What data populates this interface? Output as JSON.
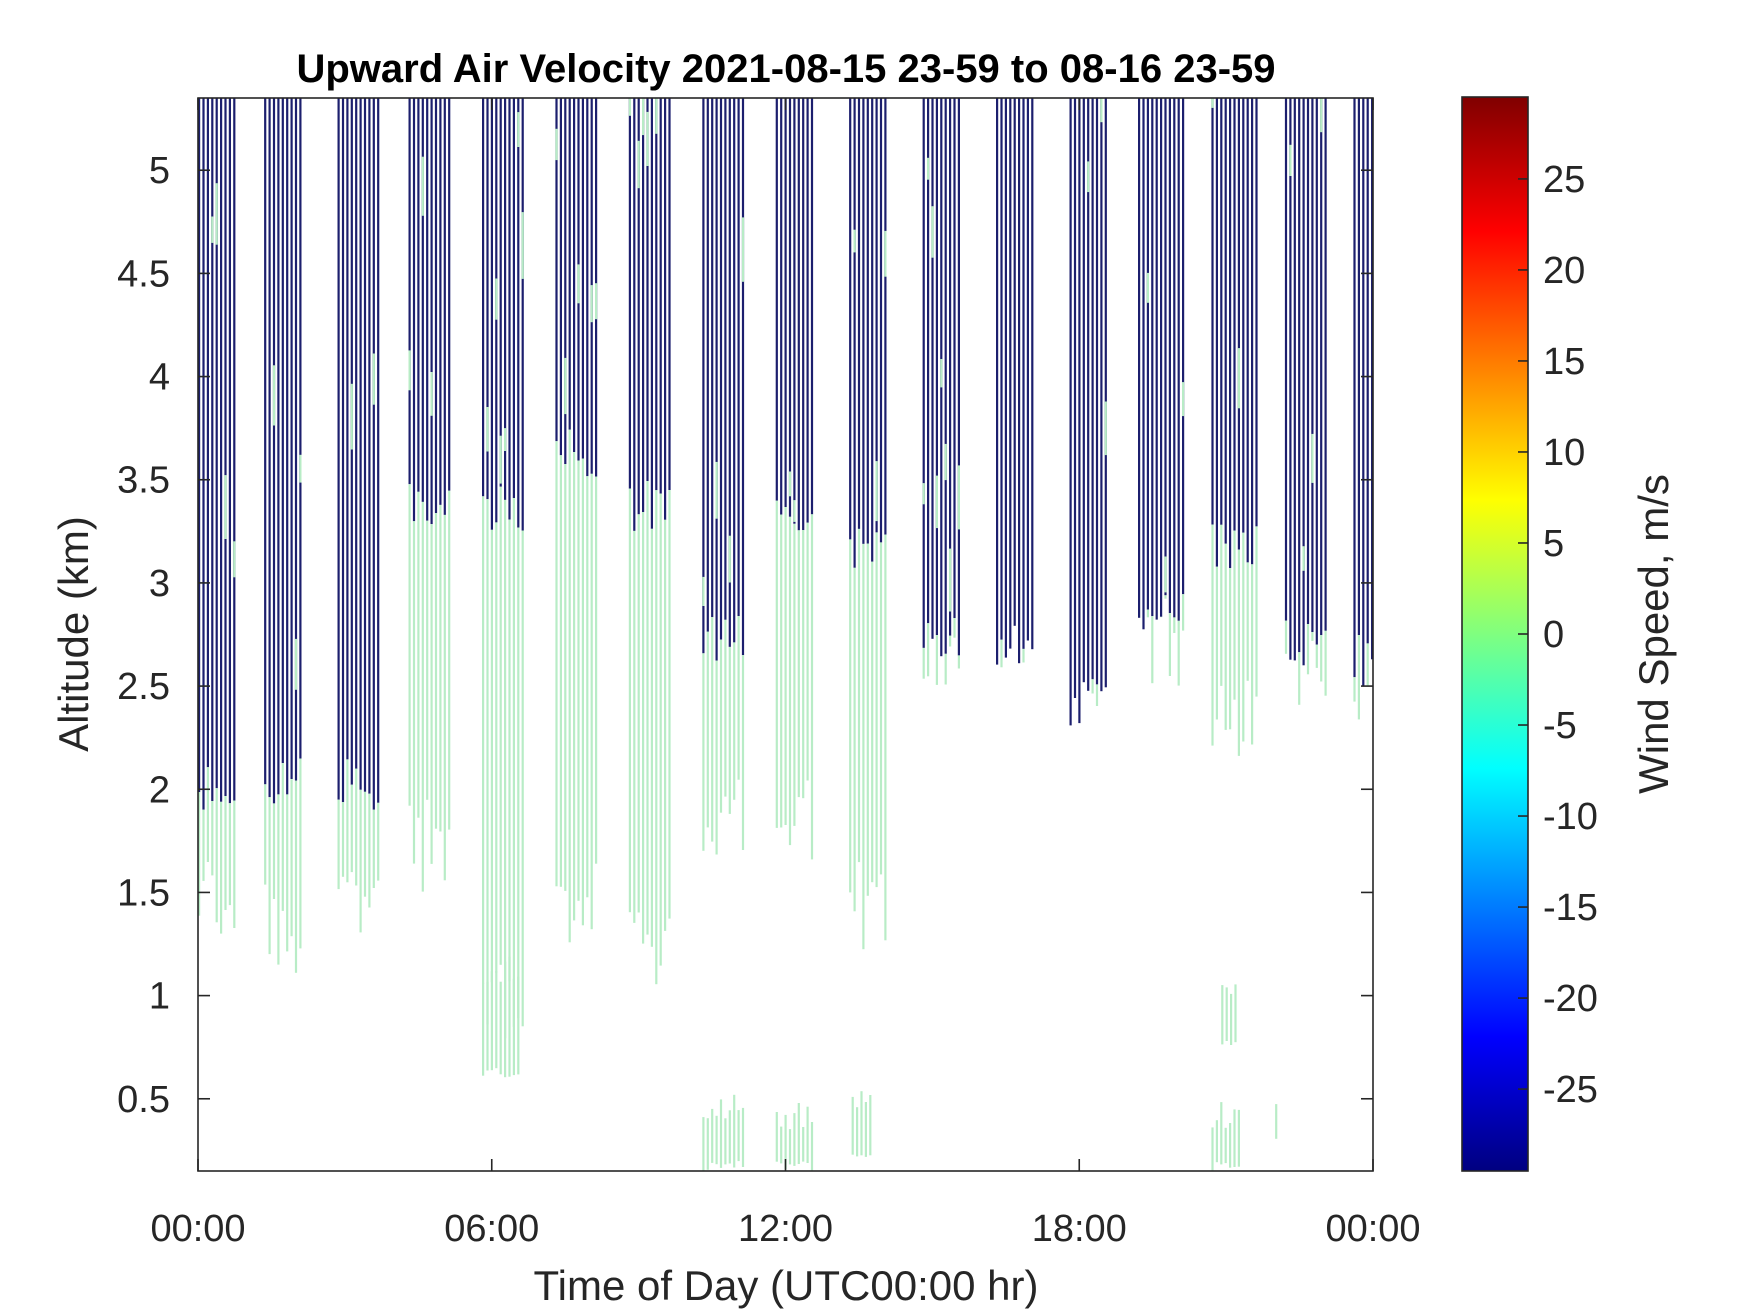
{
  "chart_data": {
    "type": "heatmap",
    "title": "Upward Air Velocity 2021-08-15 23-59 to 08-16 23-59",
    "xlabel": "Time of Day (UTC00:00 hr)",
    "ylabel": "Altitude (km)",
    "colorbar_label": "Wind Speed, m/s",
    "xlim_hours": [
      0,
      24
    ],
    "ylim_km": [
      0.15,
      5.35
    ],
    "x_ticks": [
      {
        "value": 0,
        "label": "00:00"
      },
      {
        "value": 6,
        "label": "06:00"
      },
      {
        "value": 12,
        "label": "12:00"
      },
      {
        "value": 18,
        "label": "18:00"
      },
      {
        "value": 24,
        "label": "00:00"
      }
    ],
    "y_ticks": [
      {
        "value": 0.5,
        "label": "0.5"
      },
      {
        "value": 1,
        "label": "1"
      },
      {
        "value": 1.5,
        "label": "1.5"
      },
      {
        "value": 2,
        "label": "2"
      },
      {
        "value": 2.5,
        "label": "2.5"
      },
      {
        "value": 3,
        "label": "3"
      },
      {
        "value": 3.5,
        "label": "3.5"
      },
      {
        "value": 4,
        "label": "4"
      },
      {
        "value": 4.5,
        "label": "4.5"
      },
      {
        "value": 5,
        "label": "5"
      }
    ],
    "colorbar": {
      "range": [
        -29.5,
        29.5
      ],
      "colormap": "jet",
      "ticks": [
        {
          "value": 25,
          "label": "25"
        },
        {
          "value": 20,
          "label": "20"
        },
        {
          "value": 15,
          "label": "15"
        },
        {
          "value": 10,
          "label": "10"
        },
        {
          "value": 5,
          "label": "5"
        },
        {
          "value": 0,
          "label": "0"
        },
        {
          "value": -5,
          "label": "-5"
        },
        {
          "value": -10,
          "label": "-10"
        },
        {
          "value": -15,
          "label": "-15"
        },
        {
          "value": -20,
          "label": "-20"
        },
        {
          "value": -25,
          "label": "-25"
        }
      ]
    },
    "colors": {
      "strong_downdraft": "#1c1f6e",
      "near_zero": "#b8ecc6"
    },
    "scan_blocks": [
      {
        "t_start": 0.0,
        "t_end": 0.72,
        "navy_bottom_km": 2.15,
        "green_bottom_km": 1.25
      },
      {
        "t_start": 1.35,
        "t_end": 2.15,
        "navy_bottom_km": 2.15,
        "green_bottom_km": 1.1
      },
      {
        "t_start": 2.85,
        "t_end": 3.7,
        "navy_bottom_km": 2.15,
        "green_bottom_km": 1.3
      },
      {
        "t_start": 4.3,
        "t_end": 5.15,
        "navy_bottom_km": 3.5,
        "green_bottom_km": 1.5
      },
      {
        "t_start": 5.8,
        "t_end": 6.65,
        "navy_bottom_km": 3.5,
        "green_bottom_km": 0.75
      },
      {
        "t_start": 7.3,
        "t_end": 8.15,
        "navy_bottom_km": 3.75,
        "green_bottom_km": 1.2
      },
      {
        "t_start": 8.8,
        "t_end": 9.65,
        "navy_bottom_km": 3.5,
        "green_bottom_km": 1.0
      },
      {
        "t_start": 10.3,
        "t_end": 11.15,
        "navy_bottom_km": 2.85,
        "green_bottom_km": 1.6
      },
      {
        "t_start": 11.8,
        "t_end": 12.6,
        "navy_bottom_km": 3.5,
        "green_bottom_km": 1.6
      },
      {
        "t_start": 13.3,
        "t_end": 14.1,
        "navy_bottom_km": 3.3,
        "green_bottom_km": 1.2
      },
      {
        "t_start": 14.8,
        "t_end": 15.6,
        "navy_bottom_km": 2.85,
        "green_bottom_km": 2.5
      },
      {
        "t_start": 16.3,
        "t_end": 17.1,
        "navy_bottom_km": 2.8,
        "green_bottom_km": 2.55
      },
      {
        "t_start": 17.8,
        "t_end": 18.6,
        "navy_bottom_km": 2.55,
        "green_bottom_km": 2.4
      },
      {
        "t_start": 19.2,
        "t_end": 20.1,
        "navy_bottom_km": 2.95,
        "green_bottom_km": 2.5
      },
      {
        "t_start": 20.7,
        "t_end": 21.6,
        "navy_bottom_km": 3.3,
        "green_bottom_km": 2.15
      },
      {
        "t_start": 22.2,
        "t_end": 23.05,
        "navy_bottom_km": 2.85,
        "green_bottom_km": 2.4
      },
      {
        "t_start": 23.6,
        "t_end": 24.0,
        "navy_bottom_km": 2.75,
        "green_bottom_km": 2.2
      }
    ],
    "low_level_patches": [
      {
        "t_start": 10.3,
        "t_end": 11.15,
        "bottom_km": 0.15,
        "top_km": 0.55
      },
      {
        "t_start": 11.8,
        "t_end": 12.6,
        "bottom_km": 0.15,
        "top_km": 0.5
      },
      {
        "t_start": 13.35,
        "t_end": 13.75,
        "bottom_km": 0.2,
        "top_km": 0.55
      },
      {
        "t_start": 20.7,
        "t_end": 21.3,
        "bottom_km": 0.15,
        "top_km": 0.5
      },
      {
        "t_start": 22.0,
        "t_end": 22.05,
        "bottom_km": 0.3,
        "top_km": 0.6
      },
      {
        "t_start": 5.8,
        "t_end": 6.6,
        "bottom_km": 0.6,
        "top_km": 1.2
      },
      {
        "t_start": 20.9,
        "t_end": 21.2,
        "bottom_km": 0.75,
        "top_km": 1.15
      }
    ]
  }
}
